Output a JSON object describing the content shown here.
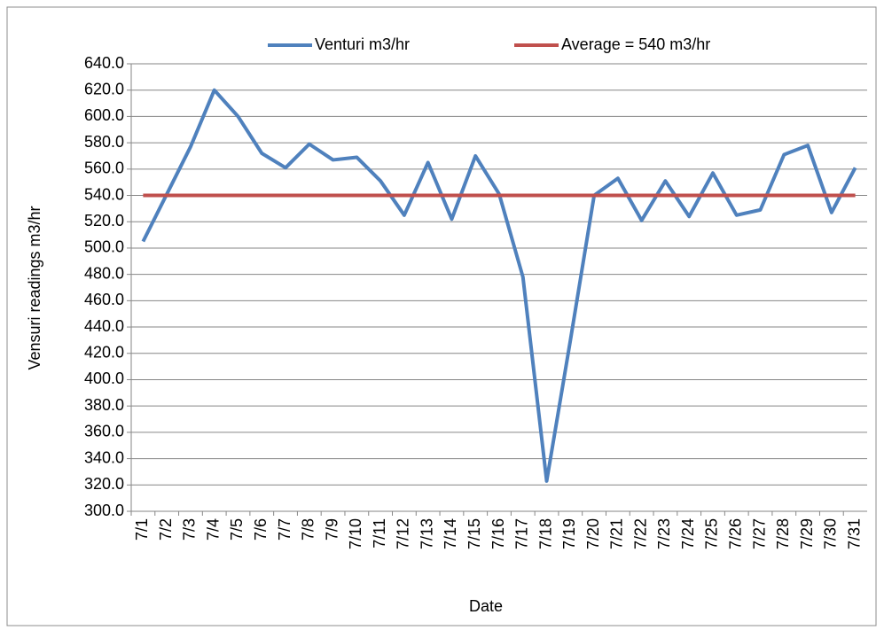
{
  "chart_data": {
    "type": "line",
    "x_label": "Date",
    "y_label": "Vensuri readings m3/hr",
    "categories": [
      "7/1",
      "7/2",
      "7/3",
      "7/4",
      "7/5",
      "7/6",
      "7/7",
      "7/8",
      "7/9",
      "7/10",
      "7/11",
      "7/12",
      "7/13",
      "7/14",
      "7/15",
      "7/16",
      "7/17",
      "7/18",
      "7/19",
      "7/20",
      "7/21",
      "7/22",
      "7/23",
      "7/24",
      "7/25",
      "7/26",
      "7/27",
      "7/28",
      "7/29",
      "7/30",
      "7/31"
    ],
    "series": [
      {
        "name": "Venturi m3/hr",
        "color": "#4f81bd",
        "values": [
          505,
          541,
          577,
          620,
          600,
          572,
          561,
          579,
          567,
          569,
          551,
          525,
          565,
          522,
          570,
          541,
          478,
          323,
          430,
          540,
          553,
          521,
          551,
          524,
          557,
          525,
          529,
          571,
          578,
          527,
          561
        ]
      },
      {
        "name": "Average = 540 m3/hr",
        "color": "#c0504d",
        "values": [
          540,
          540,
          540,
          540,
          540,
          540,
          540,
          540,
          540,
          540,
          540,
          540,
          540,
          540,
          540,
          540,
          540,
          540,
          540,
          540,
          540,
          540,
          540,
          540,
          540,
          540,
          540,
          540,
          540,
          540,
          540
        ]
      }
    ],
    "ylim": [
      300,
      640
    ],
    "yticks": [
      {
        "value": 300,
        "label": "300.0"
      },
      {
        "value": 320,
        "label": "320.0"
      },
      {
        "value": 340,
        "label": "340.0"
      },
      {
        "value": 360,
        "label": "360.0"
      },
      {
        "value": 380,
        "label": "380.0"
      },
      {
        "value": 400,
        "label": "400.0"
      },
      {
        "value": 420,
        "label": "420.0"
      },
      {
        "value": 440,
        "label": "440.0"
      },
      {
        "value": 460,
        "label": "460.0"
      },
      {
        "value": 480,
        "label": "480.0"
      },
      {
        "value": 500,
        "label": "500.0"
      },
      {
        "value": 520,
        "label": "520.0"
      },
      {
        "value": 540,
        "label": "540.0"
      },
      {
        "value": 560,
        "label": "560.0"
      },
      {
        "value": 580,
        "label": "580.0"
      },
      {
        "value": 600,
        "label": "600.0"
      },
      {
        "value": 620,
        "label": "620.0"
      },
      {
        "value": 640,
        "label": "640.0"
      }
    ],
    "grid": true,
    "legend": "top"
  }
}
